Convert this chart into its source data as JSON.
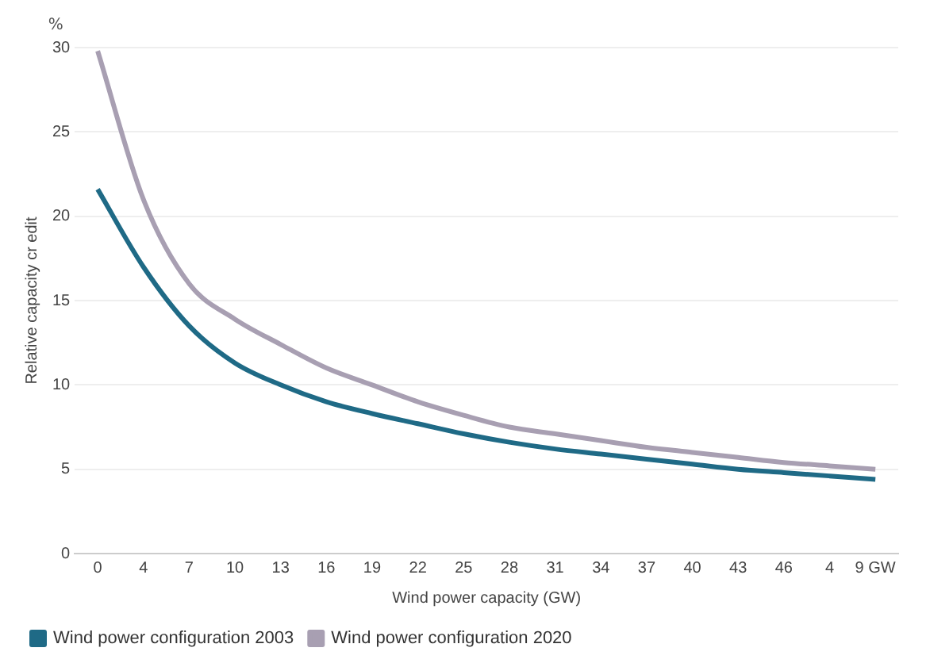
{
  "chart_data": {
    "type": "line",
    "xlabel": "Wind power capacity (GW)",
    "ylabel": "Relative capacity cr edit",
    "annotations": [
      "%"
    ],
    "categories": [
      "0",
      "4",
      "7",
      "10",
      "13",
      "16",
      "19",
      "22",
      "25",
      "28",
      "31",
      "34",
      "37",
      "40",
      "43",
      "46",
      "4",
      "9 GW"
    ],
    "series": [
      {
        "name": "Wind power configuration 2003",
        "color": "#1f6a86",
        "values": [
          21.6,
          17,
          13.5,
          11.3,
          10,
          9,
          8.3,
          7.7,
          7.1,
          6.6,
          6.2,
          5.9,
          5.6,
          5.3,
          5.0,
          4.8,
          4.6,
          4.4
        ]
      },
      {
        "name": "Wind power configuration 2020",
        "color": "#a89fb2",
        "values": [
          29.8,
          21,
          16,
          13.9,
          12.4,
          11,
          10,
          9,
          8.2,
          7.5,
          7.1,
          6.7,
          6.3,
          6,
          5.7,
          5.4,
          5.2,
          5.0
        ]
      }
    ],
    "ylim": [
      0,
      30
    ],
    "yticks": [
      0,
      5,
      10,
      15,
      20,
      25,
      30
    ],
    "grid": "y",
    "legend": "bottom left",
    "marker": "none",
    "line_style": "solid"
  }
}
